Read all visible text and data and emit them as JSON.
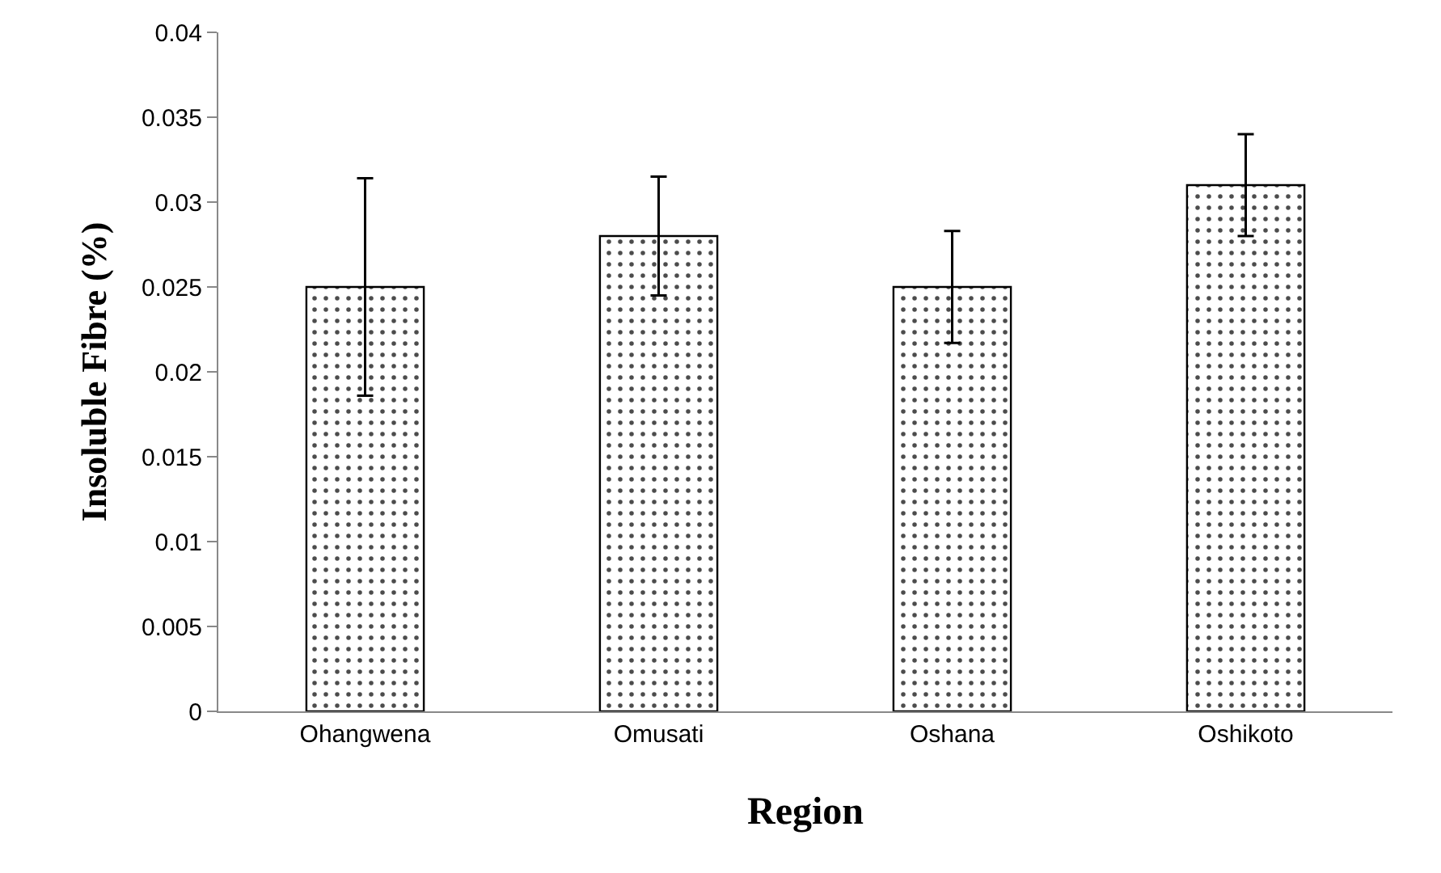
{
  "chart_data": {
    "type": "bar",
    "xlabel": "Region",
    "ylabel": "Insoluble Fibre (%)",
    "categories": [
      "Ohangwena",
      "Omusati",
      "Oshana",
      "Oshikoto"
    ],
    "values": [
      0.025,
      0.028,
      0.025,
      0.031
    ],
    "errors": [
      0.0064,
      0.0035,
      0.0033,
      0.003
    ],
    "color": "#000000",
    "ylim": [
      0,
      0.04
    ],
    "yticks": [
      0,
      0.005,
      0.01,
      0.015,
      0.02,
      0.025,
      0.03,
      0.035,
      0.04
    ]
  }
}
